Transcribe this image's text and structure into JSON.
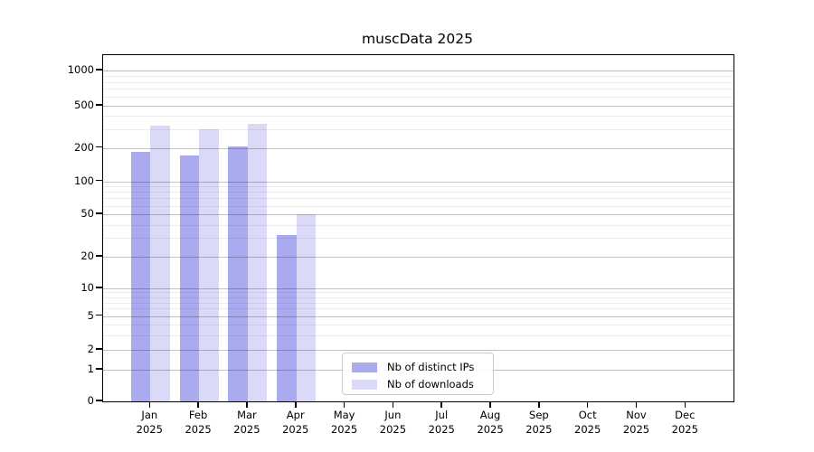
{
  "title": "muscData 2025",
  "chart_data": {
    "type": "bar",
    "title": "muscData 2025",
    "yscale": "symlog",
    "grid": true,
    "legend_position": "lower center",
    "ylim": [
      0,
      1350
    ],
    "yticks": [
      1000,
      500,
      200,
      100,
      50,
      20,
      10,
      5,
      2,
      1,
      0
    ],
    "y_minor_ticks": [
      3,
      4,
      6,
      7,
      8,
      9,
      30,
      40,
      60,
      70,
      80,
      90,
      300,
      400,
      600,
      700,
      800,
      900
    ],
    "categories": [
      {
        "month": "Jan",
        "year": "2025"
      },
      {
        "month": "Feb",
        "year": "2025"
      },
      {
        "month": "Mar",
        "year": "2025"
      },
      {
        "month": "Apr",
        "year": "2025"
      },
      {
        "month": "May",
        "year": "2025"
      },
      {
        "month": "Jun",
        "year": "2025"
      },
      {
        "month": "Jul",
        "year": "2025"
      },
      {
        "month": "Aug",
        "year": "2025"
      },
      {
        "month": "Sep",
        "year": "2025"
      },
      {
        "month": "Oct",
        "year": "2025"
      },
      {
        "month": "Nov",
        "year": "2025"
      },
      {
        "month": "Dec",
        "year": "2025"
      }
    ],
    "series": [
      {
        "name": "Nb of distinct IPs",
        "color": "#aaaaef",
        "values": [
          183,
          170,
          205,
          32,
          null,
          null,
          null,
          null,
          null,
          null,
          null,
          null
        ]
      },
      {
        "name": "Nb of downloads",
        "color": "#dadaf8",
        "values": [
          325,
          300,
          335,
          50,
          null,
          null,
          null,
          null,
          null,
          null,
          null,
          null
        ]
      }
    ]
  },
  "legend": {
    "items": [
      {
        "label": "Nb of distinct IPs",
        "color": "#aaaaef"
      },
      {
        "label": "Nb of downloads",
        "color": "#dadaf8"
      }
    ]
  }
}
